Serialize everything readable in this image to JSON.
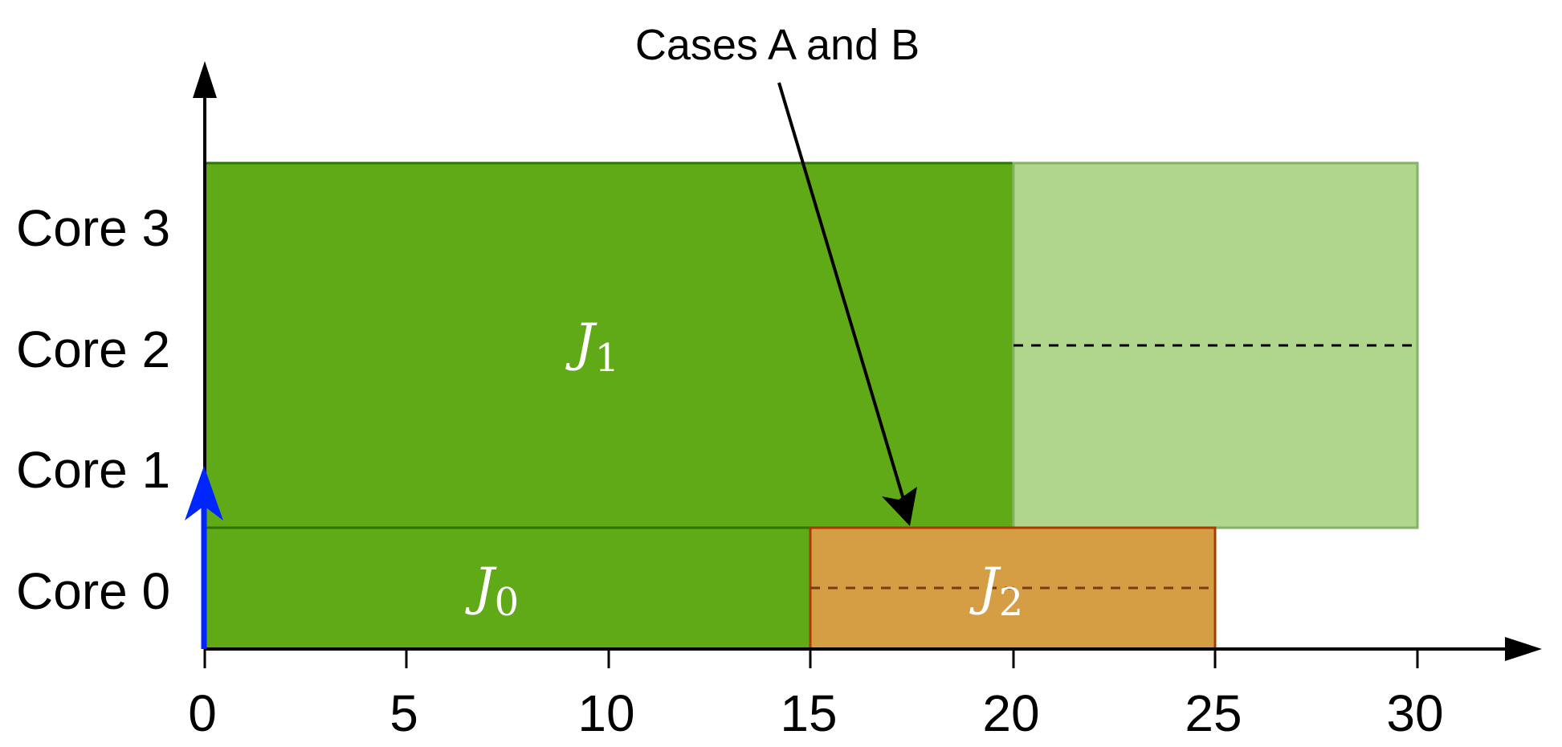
{
  "annotation": "Cases A and B",
  "cores": [
    "Core 0",
    "Core 1",
    "Core 2",
    "Core 3"
  ],
  "x_ticks": [
    "0",
    "5",
    "10",
    "15",
    "20",
    "25",
    "30"
  ],
  "jobs": [
    {
      "symbol": "J",
      "index": "0",
      "start": 0,
      "end": 15,
      "cores": [
        0
      ]
    },
    {
      "symbol": "J",
      "index": "1",
      "start": 0,
      "end": 20,
      "cores": [
        1,
        2,
        3
      ]
    },
    {
      "symbol": "J",
      "index": "2",
      "start": 15,
      "end": 25,
      "cores": [
        0
      ]
    }
  ],
  "extension": {
    "start": 20,
    "end": 30,
    "cores": [
      1,
      2,
      3
    ]
  },
  "colors": {
    "job_green": "#60a917",
    "job_green_border": "#2d7600",
    "light_green": "#b0d68d",
    "light_green_border": "#82b366",
    "orange": "#d59e45",
    "orange_border": "#a33d00",
    "orange_dash": "#7a3a10",
    "release_arrow": "#0026ff",
    "text_on_job": "#ffffff"
  }
}
